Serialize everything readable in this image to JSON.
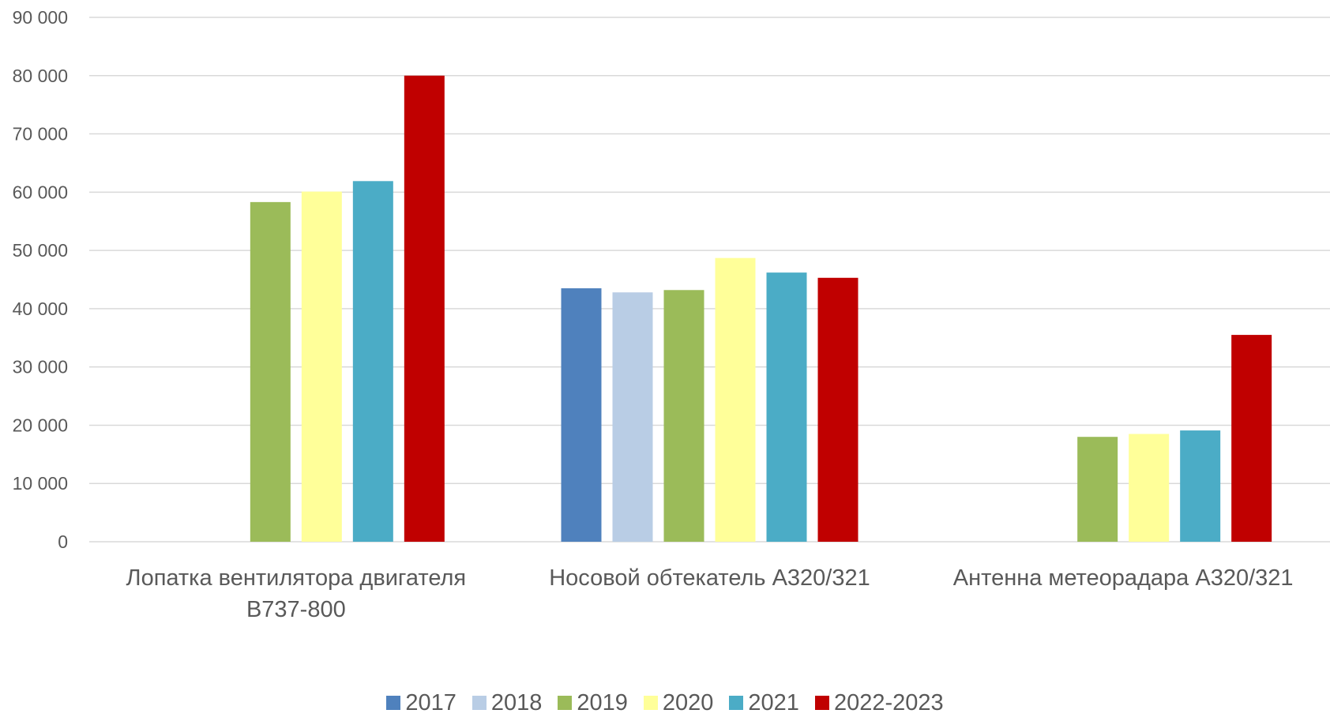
{
  "chart_data": {
    "type": "bar",
    "categories": [
      [
        "Лопатка вентилятора двигателя",
        "B737-800"
      ],
      [
        "Носовой обтекатель А320/321"
      ],
      [
        "Антенна метеорадара А320/321"
      ]
    ],
    "series": [
      {
        "name": "2017",
        "color": "#4f81bd",
        "values": [
          null,
          43500,
          null
        ]
      },
      {
        "name": "2018",
        "color": "#b9cde5",
        "values": [
          null,
          42800,
          null
        ]
      },
      {
        "name": "2019",
        "color": "#9bbb59",
        "values": [
          58300,
          43200,
          18000
        ]
      },
      {
        "name": "2020",
        "color": "#ffff99",
        "values": [
          60100,
          48700,
          18500
        ]
      },
      {
        "name": "2021",
        "color": "#4bacc6",
        "values": [
          61900,
          46200,
          19100
        ]
      },
      {
        "name": "2022-2023",
        "color": "#c00000",
        "values": [
          80000,
          45300,
          35500
        ]
      }
    ],
    "ylim": [
      0,
      90000
    ],
    "yticks": [
      0,
      10000,
      20000,
      30000,
      40000,
      50000,
      60000,
      70000,
      80000,
      90000
    ],
    "ytick_labels": [
      "0",
      "10 000",
      "20 000",
      "30 000",
      "40 000",
      "50 000",
      "60 000",
      "70 000",
      "80 000",
      "90 000"
    ],
    "grid": true,
    "legend_position": "bottom"
  }
}
